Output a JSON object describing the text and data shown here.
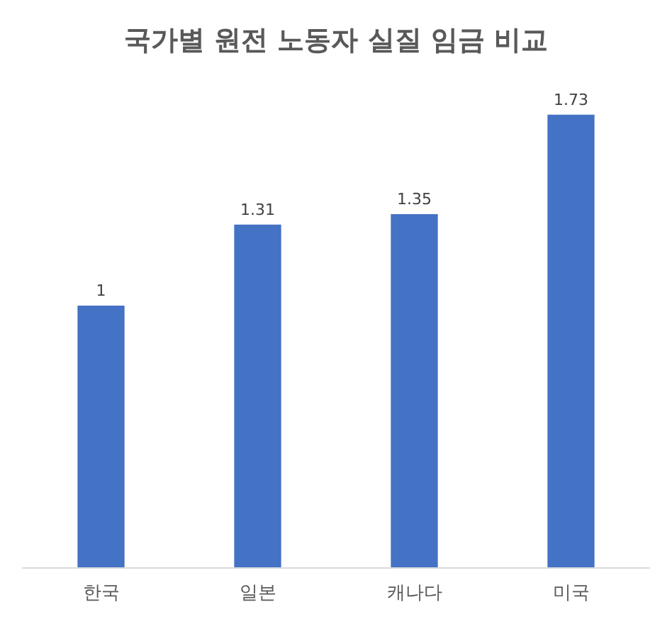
{
  "chart_data": {
    "type": "bar",
    "title": "국가별 원전 노동자 실질 임금 비교",
    "categories": [
      "한국",
      "일본",
      "캐나다",
      "미국"
    ],
    "values": [
      1,
      1.31,
      1.35,
      1.73
    ],
    "color": "#4472c4",
    "data_labels": true,
    "grid": false,
    "tick_labels": "x"
  }
}
